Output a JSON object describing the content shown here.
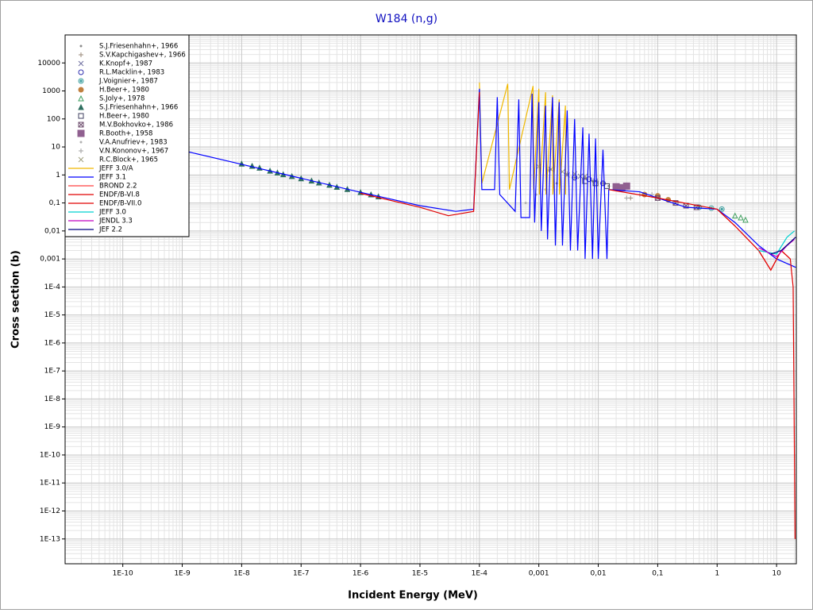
{
  "chart_data": {
    "type": "line",
    "title": "W184 (n,g)",
    "x_label": "Incident Energy (MeV)",
    "y_label": "Cross section (b)",
    "x_scale": "log",
    "y_scale": "log",
    "grid": true,
    "minor_grid": true,
    "legend": "top-left",
    "xlim": [
      1.07e-11,
      21.5
    ],
    "ylim": [
      1.3e-14,
      100000
    ],
    "xticks": [
      {
        "value": 1e-10,
        "label": "1E-10"
      },
      {
        "value": 1e-09,
        "label": "1E-9"
      },
      {
        "value": 1e-08,
        "label": "1E-8"
      },
      {
        "value": 1e-07,
        "label": "1E-7"
      },
      {
        "value": 1e-06,
        "label": "1E-6"
      },
      {
        "value": 1e-05,
        "label": "1E-5"
      },
      {
        "value": 0.0001,
        "label": "1E-4"
      },
      {
        "value": 0.001,
        "label": "0,001"
      },
      {
        "value": 0.01,
        "label": "0,01"
      },
      {
        "value": 0.1,
        "label": "0,1"
      },
      1,
      10
    ],
    "yticks": [
      {
        "value": 1e-13,
        "label": "1E-13"
      },
      {
        "value": 1e-12,
        "label": "1E-12"
      },
      {
        "value": 1e-11,
        "label": "1E-11"
      },
      {
        "value": 1e-10,
        "label": "1E-10"
      },
      {
        "value": 1e-09,
        "label": "1E-9"
      },
      {
        "value": 1e-08,
        "label": "1E-8"
      },
      {
        "value": 1e-07,
        "label": "1E-7"
      },
      {
        "value": 1e-06,
        "label": "1E-6"
      },
      {
        "value": 1e-05,
        "label": "1E-5"
      },
      {
        "value": 0.0001,
        "label": "1E-4"
      },
      {
        "value": 0.001,
        "label": "0,001"
      },
      {
        "value": 0.01,
        "label": "0,01"
      },
      {
        "value": 0.1,
        "label": "0,1"
      },
      1,
      10,
      100,
      1000,
      10000
    ],
    "series": [
      {
        "name": "S.J.Friesenhahn+, 1966",
        "kind": "marker",
        "marker": "dot",
        "color": "#8a8a8a",
        "x": [
          0.002,
          0.004,
          0.008,
          0.015
        ],
        "values": [
          0.5,
          0.8,
          0.6,
          0.4
        ]
      },
      {
        "name": "S.V.Kapchigashev+, 1966",
        "kind": "marker",
        "marker": "plus",
        "color": "#9a8a7a",
        "x": [
          0.0015,
          0.003,
          0.006,
          0.012,
          0.02,
          0.035
        ],
        "values": [
          1.5,
          1.1,
          0.8,
          0.5,
          0.35,
          0.15
        ]
      },
      {
        "name": "K.Knopf+, 1987",
        "kind": "marker",
        "marker": "x",
        "color": "#7070a0",
        "x": [
          0.003,
          0.005,
          0.009
        ],
        "values": [
          1.0,
          0.9,
          0.6
        ]
      },
      {
        "name": "R.L.Macklin+, 1983",
        "kind": "marker",
        "marker": "circle",
        "color": "#3030b0",
        "x": [
          0.004,
          0.007,
          0.012
        ],
        "values": [
          0.8,
          0.7,
          0.5
        ]
      },
      {
        "name": "J.Voignier+, 1987",
        "kind": "marker",
        "marker": "target",
        "color": "#40a0a0",
        "x": [
          0.5,
          0.8,
          1.2
        ],
        "values": [
          0.07,
          0.065,
          0.06
        ]
      },
      {
        "name": "H.Beer+, 1980",
        "kind": "marker",
        "marker": "filled-circle",
        "color": "#c08040",
        "x": [
          0.06,
          0.1,
          0.15
        ],
        "values": [
          0.2,
          0.18,
          0.13
        ]
      },
      {
        "name": "S.Joly+, 1978",
        "kind": "marker",
        "marker": "triangle",
        "color": "#40a060",
        "x": [
          2,
          2.5,
          3
        ],
        "values": [
          0.035,
          0.03,
          0.025
        ]
      },
      {
        "name": "S.J.Friesenhahn+, 1966",
        "kind": "marker",
        "marker": "filled-triangle",
        "color": "#2e6e5e",
        "x": [
          1e-08,
          1.5e-08,
          2e-08,
          3e-08,
          4e-08,
          5e-08,
          7e-08,
          1e-07,
          1.5e-07,
          2e-07,
          3e-07,
          4e-07,
          6e-07,
          1e-06,
          1.5e-06,
          2e-06
        ],
        "values": [
          2.5,
          2.1,
          1.8,
          1.4,
          1.2,
          1.05,
          0.9,
          0.75,
          0.62,
          0.53,
          0.44,
          0.37,
          0.31,
          0.24,
          0.2,
          0.17
        ]
      },
      {
        "name": "H.Beer+, 1980",
        "kind": "marker",
        "marker": "square",
        "color": "#404060",
        "x": [
          0.006,
          0.009,
          0.014
        ],
        "values": [
          0.6,
          0.5,
          0.4
        ]
      },
      {
        "name": "M.V.Bokhovko+, 1986",
        "kind": "marker",
        "marker": "box-x",
        "color": "#705070",
        "x": [
          0.1,
          0.2,
          0.3,
          0.45
        ],
        "values": [
          0.15,
          0.1,
          0.08,
          0.07
        ]
      },
      {
        "name": "R.Booth+, 1958",
        "kind": "marker",
        "marker": "filled-square",
        "color": "#906090",
        "x": [
          0.02,
          0.025,
          0.03
        ],
        "values": [
          0.38,
          0.35,
          0.4
        ]
      },
      {
        "name": "V.A.Anufriev+, 1983",
        "kind": "marker",
        "marker": "dot",
        "color": "#b0b0b0",
        "x": [
          0.0006,
          0.0009,
          0.0013
        ],
        "values": [
          0.1,
          0.2,
          0.3
        ]
      },
      {
        "name": "V.N.Kononov+, 1967",
        "kind": "marker",
        "marker": "plus",
        "color": "#a0a0a0",
        "x": [
          0.03,
          0.05,
          0.08
        ],
        "values": [
          0.15,
          0.2,
          0.2
        ]
      },
      {
        "name": "R.C.Block+, 1965",
        "kind": "marker",
        "marker": "x",
        "color": "#a0a080",
        "x": [
          0.001,
          0.0016,
          0.0025,
          0.004,
          0.006
        ],
        "values": [
          2,
          1.6,
          1.3,
          1.1,
          0.9
        ]
      },
      {
        "name": "JEFF 3.0/A",
        "kind": "line",
        "color": "#f0b800",
        "x": [
          0.0001,
          0.00011,
          0.0003,
          0.00032,
          0.0008,
          0.00082,
          0.001,
          0.00102,
          0.0013,
          0.00132,
          0.0017,
          0.00172,
          0.0022,
          0.00222,
          0.0028,
          0.00282
        ],
        "values": [
          2000,
          0.5,
          1800,
          0.3,
          1500,
          0.3,
          1200,
          0.2,
          900,
          0.2,
          700,
          0.2,
          500,
          0.2,
          300,
          0.2
        ]
      },
      {
        "name": "JEFF 3.1",
        "kind": "line",
        "color": "#0000ff",
        "x": [
          1e-09,
          1e-08,
          1e-07,
          1e-06,
          1e-05,
          4e-05,
          8e-05,
          0.0001,
          0.00011,
          0.00018,
          0.0002,
          0.00022,
          0.0004,
          0.00046,
          0.0005,
          0.0007,
          0.00077,
          0.00085,
          0.001,
          0.0011,
          0.0013,
          0.0014,
          0.0017,
          0.0019,
          0.0022,
          0.0025,
          0.003,
          0.0034,
          0.004,
          0.0045,
          0.0055,
          0.006,
          0.007,
          0.008,
          0.009,
          0.01,
          0.012,
          0.014,
          0.015,
          0.05,
          0.1,
          0.3,
          1,
          2,
          5,
          10,
          21
        ],
        "values": [
          7.5,
          2.4,
          0.76,
          0.24,
          0.08,
          0.05,
          0.06,
          1200,
          0.3,
          0.3,
          600,
          0.2,
          0.05,
          500,
          0.03,
          0.03,
          800,
          0.02,
          400,
          0.01,
          300,
          0.005,
          600,
          0.003,
          400,
          0.003,
          200,
          0.002,
          100,
          0.002,
          50,
          0.001,
          30,
          0.001,
          20,
          0.001,
          8,
          0.001,
          0.3,
          0.25,
          0.15,
          0.07,
          0.06,
          0.02,
          0.003,
          0.001,
          0.0005
        ]
      },
      {
        "name": "BROND 2.2",
        "kind": "line",
        "color": "#ff4040",
        "x": [
          1,
          2,
          5,
          8,
          12,
          17
        ],
        "values": [
          0.06,
          0.015,
          0.002,
          0.0004,
          0.002,
          0.001
        ]
      },
      {
        "name": "ENDF/B-VI.8",
        "kind": "line",
        "color": "#e00000",
        "x": [
          1e-06,
          1e-05,
          3e-05,
          8e-05,
          0.0001
        ],
        "values": [
          0.22,
          0.07,
          0.035,
          0.05,
          900
        ]
      },
      {
        "name": "ENDF/B-VII.0",
        "kind": "line",
        "color": "#e00000",
        "x": [
          0.015,
          0.1,
          1,
          2,
          5,
          8,
          12,
          17,
          19,
          20.5
        ],
        "values": [
          0.3,
          0.15,
          0.06,
          0.015,
          0.002,
          0.0004,
          0.002,
          0.001,
          0.0001,
          1e-13
        ]
      },
      {
        "name": "JEFF 3.0",
        "kind": "line",
        "color": "#00d0d0",
        "x": [
          5,
          10,
          15,
          20
        ],
        "values": [
          0.002,
          0.0015,
          0.006,
          0.01
        ]
      },
      {
        "name": "JENDL 3.3",
        "kind": "line",
        "color": "#c000c0",
        "x": [
          5,
          10,
          15,
          20
        ],
        "values": [
          0.0025,
          0.0012,
          0.003,
          0.005
        ]
      },
      {
        "name": "JEF 2.2",
        "kind": "line",
        "color": "#000080",
        "x": [
          8,
          12,
          17,
          21
        ],
        "values": [
          0.0015,
          0.002,
          0.004,
          0.006
        ]
      }
    ]
  }
}
